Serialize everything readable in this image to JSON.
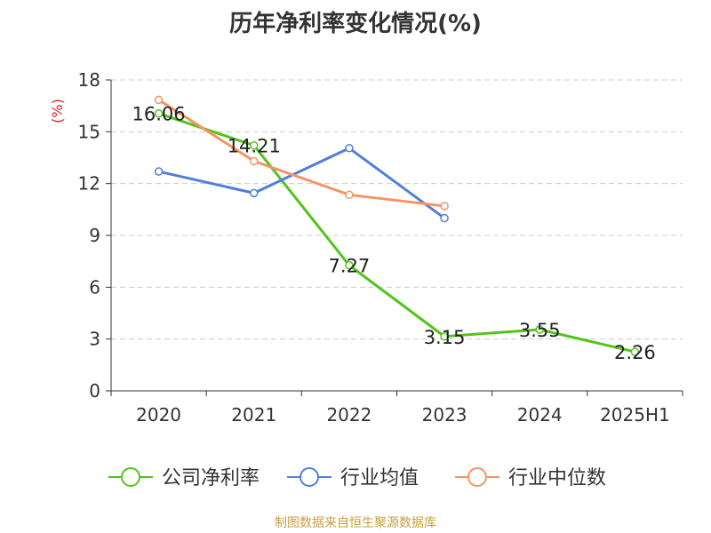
{
  "chart_data": {
    "type": "line",
    "title": "历年净利率变化情况(%)",
    "ylabel": "(%)",
    "ylim": [
      0,
      18
    ],
    "yticks": [
      0,
      3,
      6,
      9,
      12,
      15,
      18
    ],
    "grid": true,
    "legend_position": "bottom",
    "categories": [
      "2020",
      "2021",
      "2022",
      "2023",
      "2024",
      "2025H1"
    ],
    "series": [
      {
        "name": "公司净利率",
        "color": "#52c41a",
        "values": [
          16.06,
          14.21,
          7.27,
          3.15,
          3.55,
          2.26
        ],
        "labels": [
          "16.06",
          "14.21",
          "7.27",
          "3.15",
          "3.55",
          "2.26"
        ]
      },
      {
        "name": "行业均值",
        "color": "#4f7fdb",
        "values": [
          12.7,
          11.45,
          14.05,
          10.0,
          null,
          null
        ]
      },
      {
        "name": "行业中位数",
        "color": "#f59461",
        "values": [
          16.85,
          13.3,
          11.35,
          10.7,
          null,
          null
        ]
      }
    ]
  },
  "source": "制图数据来自恒生聚源数据库"
}
